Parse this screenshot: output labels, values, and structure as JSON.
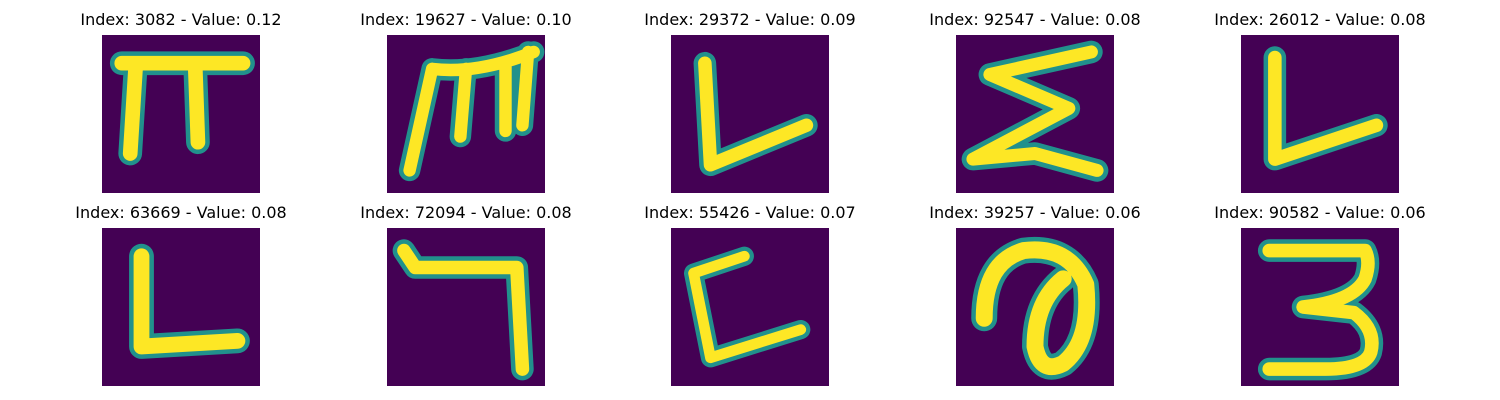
{
  "figure": {
    "background": "#ffffff",
    "image_background_color": "#440154",
    "stroke_core_color": "#fde725",
    "stroke_edge_color": "#21918c",
    "panels": [
      {
        "title": "Index: 3082 - Value: 0.12",
        "glyph": "pi-like-character"
      },
      {
        "title": "Index: 19627 - Value: 0.10",
        "glyph": "m-like-character"
      },
      {
        "title": "Index: 29372 - Value: 0.09",
        "glyph": "L-like-character"
      },
      {
        "title": "Index: 92547 - Value: 0.08",
        "glyph": "sigma-like-character"
      },
      {
        "title": "Index: 26012 - Value: 0.08",
        "glyph": "L-like-character"
      },
      {
        "title": "Index: 63669 - Value: 0.08",
        "glyph": "L-like-character"
      },
      {
        "title": "Index: 72094 - Value: 0.08",
        "glyph": "reversed-L-like-character"
      },
      {
        "title": "Index: 55426 - Value: 0.07",
        "glyph": "C-like-character"
      },
      {
        "title": "Index: 39257 - Value: 0.06",
        "glyph": "a-like-character"
      },
      {
        "title": "Index: 90582 - Value: 0.06",
        "glyph": "3-like-character"
      }
    ]
  }
}
